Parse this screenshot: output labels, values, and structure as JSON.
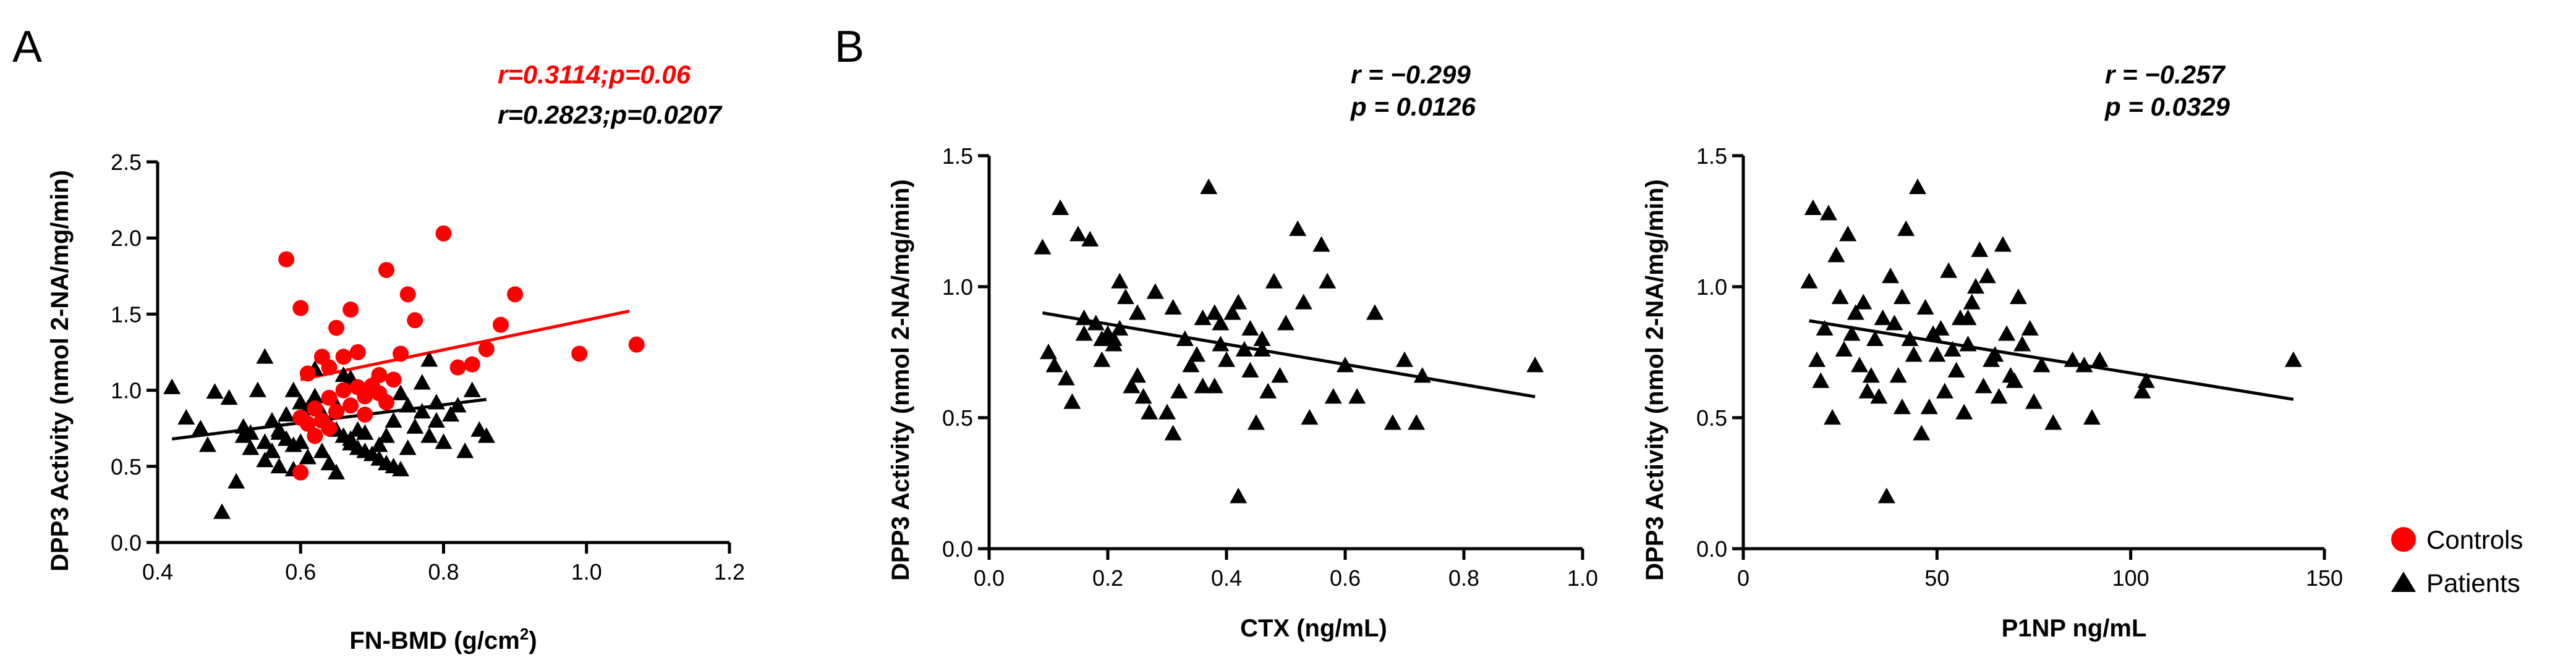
{
  "panel_labels": {
    "a": "A",
    "b": "B"
  },
  "colors": {
    "controls": "#ff0000",
    "patients": "#000000"
  },
  "legend": {
    "controls": "Controls",
    "patients": "Patients"
  },
  "chart_data": [
    {
      "type": "scatter",
      "panel": "A",
      "xlabel": "FN-BMD (g/cm",
      "xlabel_sup": "2",
      "xlabel_close": ")",
      "ylabel": "DPP3 Activity (nmol 2-NA/mg/min)",
      "xlim": [
        0.4,
        1.2
      ],
      "ylim": [
        0.0,
        2.5
      ],
      "xticks": [
        "0.4",
        "0.6",
        "0.8",
        "1.0",
        "1.2"
      ],
      "yticks": [
        "0.0",
        "0.5",
        "1.0",
        "1.5",
        "2.0",
        "2.5"
      ],
      "stats": [
        "r=0.3114;p=0.06",
        "r=0.2823;p=0.0207"
      ],
      "series": [
        {
          "name": "Controls",
          "marker": "circle",
          "x": [
            0.58,
            0.6,
            0.61,
            0.65,
            0.67,
            0.72,
            0.75,
            0.8,
            0.9,
            0.99,
            1.07,
            0.63,
            0.64,
            0.66,
            0.68,
            0.7,
            0.71,
            0.74,
            0.76,
            0.82,
            0.84,
            0.86,
            0.88,
            0.6,
            0.62,
            0.64,
            0.66,
            0.68,
            0.69,
            0.71,
            0.73,
            0.61,
            0.63,
            0.65,
            0.67,
            0.69,
            0.72,
            0.6,
            0.62,
            0.64
          ],
          "y": [
            1.86,
            1.54,
            1.11,
            1.41,
            1.53,
            1.79,
            1.63,
            2.03,
            1.63,
            1.24,
            1.3,
            1.22,
            1.15,
            1.22,
            1.25,
            1.03,
            1.1,
            1.24,
            1.46,
            1.15,
            1.17,
            1.27,
            1.43,
            0.82,
            0.88,
            0.95,
            1.0,
            1.02,
            0.96,
            0.98,
            1.07,
            0.78,
            0.8,
            0.86,
            0.9,
            0.84,
            0.92,
            0.46,
            0.7,
            0.75
          ],
          "fit_x": [
            0.6,
            1.06
          ],
          "fit_y": [
            1.07,
            1.52
          ]
        },
        {
          "name": "Patients",
          "marker": "triangle",
          "x": [
            0.42,
            0.44,
            0.46,
            0.48,
            0.49,
            0.5,
            0.52,
            0.53,
            0.54,
            0.55,
            0.56,
            0.57,
            0.58,
            0.59,
            0.6,
            0.61,
            0.62,
            0.63,
            0.64,
            0.65,
            0.66,
            0.67,
            0.68,
            0.69,
            0.7,
            0.71,
            0.72,
            0.73,
            0.74,
            0.75,
            0.76,
            0.77,
            0.78,
            0.79,
            0.8,
            0.82,
            0.84,
            0.86,
            0.55,
            0.57,
            0.59,
            0.61,
            0.63,
            0.65,
            0.67,
            0.69,
            0.71,
            0.73,
            0.75,
            0.77,
            0.79,
            0.81,
            0.83,
            0.85,
            0.51,
            0.53,
            0.55,
            0.57,
            0.59,
            0.61,
            0.63,
            0.65,
            0.67,
            0.47,
            0.52,
            0.58,
            0.62,
            0.66,
            0.7,
            0.74,
            0.78,
            0.56,
            0.6,
            0.64,
            0.68,
            0.72
          ],
          "y": [
            1.02,
            0.82,
            0.75,
            0.99,
            0.2,
            0.95,
            0.7,
            0.72,
            1.0,
            1.22,
            0.8,
            0.74,
            0.68,
            1.0,
            0.92,
            0.88,
            0.96,
            0.85,
            0.78,
            0.74,
            0.7,
            0.65,
            0.62,
            0.6,
            0.58,
            0.55,
            0.52,
            0.5,
            0.48,
            0.62,
            0.76,
            0.86,
            0.7,
            0.8,
            0.66,
            0.9,
            1.0,
            0.7,
            0.54,
            0.5,
            0.48,
            0.56,
            0.6,
            0.46,
            0.68,
            0.72,
            0.64,
            0.8,
            0.9,
            1.05,
            0.92,
            0.84,
            0.6,
            0.74,
            0.4,
            0.62,
            0.66,
            0.72,
            0.64,
            0.56,
            0.82,
            0.9,
            1.08,
            0.64,
            0.76,
            0.84,
            1.14,
            1.1,
            1.04,
            0.98,
            1.2,
            0.6,
            0.66,
            0.52,
            0.74,
            0.7
          ],
          "fit_x": [
            0.42,
            0.86
          ],
          "fit_y": [
            0.68,
            0.94
          ]
        }
      ]
    },
    {
      "type": "scatter",
      "panel": "B1",
      "xlabel": "CTX (ng/mL)",
      "ylabel": "DPP3 Activity (nmol 2-NA/mg/min)",
      "xlim": [
        0.0,
        1.0
      ],
      "ylim": [
        0.0,
        1.5
      ],
      "xticks": [
        "0.0",
        "0.2",
        "0.4",
        "0.6",
        "0.8",
        "1.0"
      ],
      "yticks": [
        "0.0",
        "0.5",
        "1.0",
        "1.5"
      ],
      "stats": [
        "r = −0.299",
        "p = 0.0126"
      ],
      "series": [
        {
          "name": "Patients",
          "marker": "triangle",
          "x": [
            0.09,
            0.11,
            0.12,
            0.14,
            0.15,
            0.17,
            0.18,
            0.19,
            0.2,
            0.21,
            0.22,
            0.23,
            0.24,
            0.25,
            0.26,
            0.28,
            0.3,
            0.31,
            0.32,
            0.34,
            0.35,
            0.36,
            0.37,
            0.38,
            0.39,
            0.4,
            0.41,
            0.42,
            0.43,
            0.44,
            0.45,
            0.46,
            0.47,
            0.48,
            0.5,
            0.52,
            0.54,
            0.56,
            0.58,
            0.62,
            0.65,
            0.7,
            0.72,
            0.73,
            0.92,
            0.1,
            0.13,
            0.16,
            0.19,
            0.22,
            0.25,
            0.28,
            0.33,
            0.36,
            0.39,
            0.42,
            0.46,
            0.49,
            0.53,
            0.57,
            0.16,
            0.21,
            0.27,
            0.31,
            0.38,
            0.44,
            0.6,
            0.68
          ],
          "y": [
            1.15,
            0.7,
            1.3,
            0.56,
            1.2,
            1.18,
            0.86,
            0.8,
            0.82,
            0.78,
            1.02,
            0.96,
            0.62,
            0.9,
            0.58,
            0.98,
            0.52,
            0.44,
            0.6,
            0.7,
            0.74,
            0.88,
            1.38,
            0.62,
            0.78,
            0.72,
            0.9,
            0.2,
            0.76,
            0.68,
            0.48,
            0.8,
            0.6,
            1.02,
            0.86,
            1.22,
            0.5,
            1.16,
            0.58,
            0.58,
            0.9,
            0.72,
            0.48,
            0.66,
            0.7,
            0.75,
            0.65,
            0.88,
            0.72,
            0.84,
            0.66,
            0.98,
            0.8,
            0.62,
            0.86,
            0.94,
            0.76,
            0.66,
            0.94,
            1.02,
            0.82,
            0.8,
            0.52,
            0.92,
            0.9,
            0.84,
            0.7,
            0.48
          ],
          "fit_x": [
            0.09,
            0.92
          ],
          "fit_y": [
            0.9,
            0.58
          ]
        }
      ]
    },
    {
      "type": "scatter",
      "panel": "B2",
      "xlabel": "P1NP ng/mL",
      "ylabel": "DPP3 Activity (nmol 2-NA/mg/min)",
      "xlim": [
        0,
        150
      ],
      "ylim": [
        0.0,
        1.5
      ],
      "xticks": [
        "0",
        "50",
        "100",
        "150"
      ],
      "yticks": [
        "0.0",
        "0.5",
        "1.0",
        "1.5"
      ],
      "stats": [
        "r = −0.257",
        "p = 0.0329"
      ],
      "series": [
        {
          "name": "Patients",
          "marker": "triangle",
          "x": [
            17,
            18,
            19,
            20,
            22,
            24,
            25,
            27,
            28,
            30,
            31,
            33,
            35,
            36,
            37,
            38,
            40,
            41,
            42,
            43,
            45,
            46,
            47,
            48,
            50,
            51,
            52,
            53,
            55,
            56,
            57,
            58,
            60,
            61,
            62,
            63,
            65,
            66,
            67,
            68,
            70,
            72,
            75,
            77,
            80,
            85,
            88,
            90,
            92,
            103,
            104,
            142,
            21,
            26,
            29,
            34,
            39,
            44,
            49,
            54,
            59,
            64,
            69,
            74,
            23,
            32,
            41,
            58,
            71
          ],
          "y": [
            1.02,
            1.3,
            0.72,
            0.64,
            1.28,
            1.12,
            0.96,
            1.2,
            0.82,
            0.7,
            0.94,
            0.66,
            0.58,
            0.88,
            0.2,
            1.04,
            0.66,
            0.96,
            1.22,
            0.8,
            1.38,
            0.44,
            0.92,
            0.54,
            0.74,
            0.84,
            0.6,
            1.06,
            0.68,
            0.88,
            0.52,
            0.78,
            1.0,
            1.14,
            0.62,
            1.04,
            0.74,
            0.58,
            1.16,
            0.82,
            0.64,
            0.78,
            0.56,
            0.7,
            0.48,
            0.72,
            0.7,
            0.5,
            0.72,
            0.6,
            0.64,
            0.72,
            0.84,
            0.76,
            0.9,
            0.8,
            0.86,
            0.74,
            0.82,
            0.76,
            0.94,
            0.72,
            0.66,
            0.84,
            0.5,
            0.6,
            0.54,
            0.88,
            0.96
          ],
          "fit_x": [
            17,
            142
          ],
          "fit_y": [
            0.87,
            0.57
          ]
        }
      ]
    }
  ]
}
